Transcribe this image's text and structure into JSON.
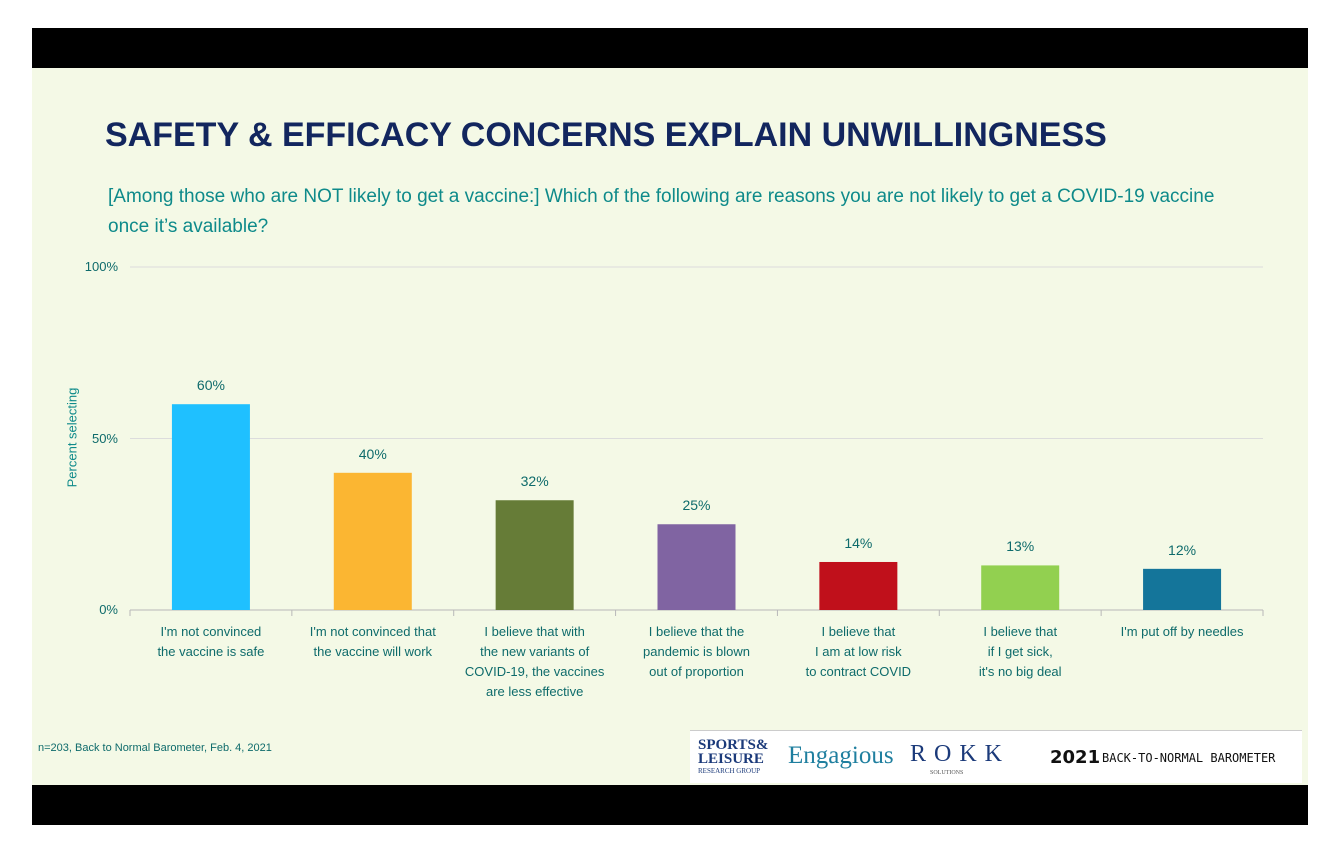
{
  "chart_data": {
    "type": "bar",
    "title": "SAFETY & EFFICACY CONCERNS EXPLAIN UNWILLINGNESS",
    "subtitle": "[Among those who are NOT likely to get a vaccine:] Which of the following are reasons you are not likely to get a COVID-19 vaccine once it’s available?",
    "y_label": "Percent selecting",
    "categories": [
      "I'm not convinced\nthe vaccine is safe",
      "I'm not convinced that\nthe vaccine will work",
      "I believe that with\nthe new variants of\nCOVID-19, the vaccines\nare less effective",
      "I believe that the\npandemic is blown\nout of proportion",
      "I believe that\nI am at low risk\nto contract COVID",
      "I believe that\nif I get sick,\nit's no big deal",
      "I'm put off by needles"
    ],
    "values": [
      60,
      40,
      32,
      25,
      14,
      13,
      12
    ],
    "value_labels": [
      "60%",
      "40%",
      "32%",
      "25%",
      "14%",
      "13%",
      "12%"
    ],
    "colors": [
      "#1fc0ff",
      "#fbb632",
      "#667c37",
      "#8064a2",
      "#c0101b",
      "#92d050",
      "#14759a"
    ],
    "ylim": [
      0,
      100
    ],
    "yticks": [
      {
        "value": 0,
        "label": "0%"
      },
      {
        "value": 50,
        "label": "50%"
      },
      {
        "value": 100,
        "label": "100%"
      }
    ],
    "grid": true,
    "footnote": "n=203, Back to Normal Barometer, Feb. 4, 2021"
  },
  "logos": {
    "sports_top": "SPORTS&",
    "sports_mid": "LEISURE",
    "sports_bottom": "RESEARCH GROUP",
    "engagious": "Engagious",
    "rokk": "ROKK",
    "rokk_sub": "SOLUTIONS",
    "year": "2021",
    "barometer": "BACK-TO-NORMAL BAROMETER"
  }
}
